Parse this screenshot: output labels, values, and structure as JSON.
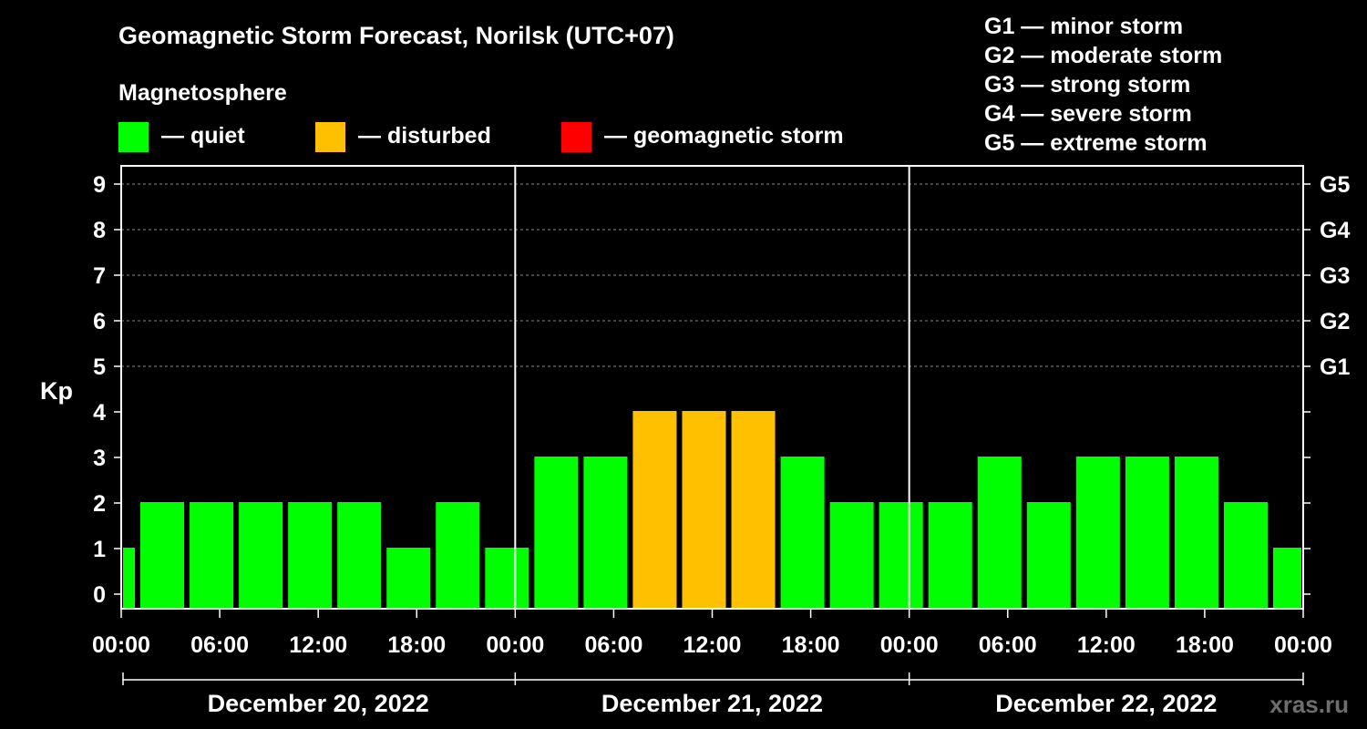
{
  "chart_data": {
    "type": "bar",
    "title": "Geomagnetic Storm Forecast, Norilsk (UTC+07)",
    "legend_title": "Magnetosphere",
    "legend": [
      {
        "label": "— quiet",
        "color": "#00ff00"
      },
      {
        "label": "— disturbed",
        "color": "#ffc000"
      },
      {
        "label": "— geomagnetic storm",
        "color": "#ff0000"
      }
    ],
    "storm_scale": [
      "G1 — minor storm",
      "G2 — moderate storm",
      "G3 — strong storm",
      "G4 — severe storm",
      "G5 — extreme storm"
    ],
    "ylabel": "Kp",
    "ylim": [
      0,
      9
    ],
    "y_ticks": [
      0,
      1,
      2,
      3,
      4,
      5,
      6,
      7,
      8,
      9
    ],
    "right_axis_labels": [
      {
        "kp": 5,
        "label": "G1"
      },
      {
        "kp": 6,
        "label": "G2"
      },
      {
        "kp": 7,
        "label": "G3"
      },
      {
        "kp": 8,
        "label": "G4"
      },
      {
        "kp": 9,
        "label": "G5"
      }
    ],
    "x_ticks": [
      "00:00",
      "06:00",
      "12:00",
      "18:00",
      "00:00",
      "06:00",
      "12:00",
      "18:00",
      "00:00",
      "06:00",
      "12:00",
      "18:00",
      "00:00"
    ],
    "days": [
      "December 20, 2022",
      "December 21, 2022",
      "December 22, 2022"
    ],
    "bars": [
      {
        "start_hour": 0,
        "end_hour": 1,
        "kp": 1,
        "status": "quiet"
      },
      {
        "start_hour": 1,
        "end_hour": 4,
        "kp": 2,
        "status": "quiet"
      },
      {
        "start_hour": 4,
        "end_hour": 7,
        "kp": 2,
        "status": "quiet"
      },
      {
        "start_hour": 7,
        "end_hour": 10,
        "kp": 2,
        "status": "quiet"
      },
      {
        "start_hour": 10,
        "end_hour": 13,
        "kp": 2,
        "status": "quiet"
      },
      {
        "start_hour": 13,
        "end_hour": 16,
        "kp": 2,
        "status": "quiet"
      },
      {
        "start_hour": 16,
        "end_hour": 19,
        "kp": 1,
        "status": "quiet"
      },
      {
        "start_hour": 19,
        "end_hour": 22,
        "kp": 2,
        "status": "quiet"
      },
      {
        "start_hour": 22,
        "end_hour": 25,
        "kp": 1,
        "status": "quiet"
      },
      {
        "start_hour": 25,
        "end_hour": 28,
        "kp": 3,
        "status": "quiet"
      },
      {
        "start_hour": 28,
        "end_hour": 31,
        "kp": 3,
        "status": "quiet"
      },
      {
        "start_hour": 31,
        "end_hour": 34,
        "kp": 4,
        "status": "disturbed"
      },
      {
        "start_hour": 34,
        "end_hour": 37,
        "kp": 4,
        "status": "disturbed"
      },
      {
        "start_hour": 37,
        "end_hour": 40,
        "kp": 4,
        "status": "disturbed"
      },
      {
        "start_hour": 40,
        "end_hour": 43,
        "kp": 3,
        "status": "quiet"
      },
      {
        "start_hour": 43,
        "end_hour": 46,
        "kp": 2,
        "status": "quiet"
      },
      {
        "start_hour": 46,
        "end_hour": 49,
        "kp": 2,
        "status": "quiet"
      },
      {
        "start_hour": 49,
        "end_hour": 52,
        "kp": 2,
        "status": "quiet"
      },
      {
        "start_hour": 52,
        "end_hour": 55,
        "kp": 3,
        "status": "quiet"
      },
      {
        "start_hour": 55,
        "end_hour": 58,
        "kp": 2,
        "status": "quiet"
      },
      {
        "start_hour": 58,
        "end_hour": 61,
        "kp": 3,
        "status": "quiet"
      },
      {
        "start_hour": 61,
        "end_hour": 64,
        "kp": 3,
        "status": "quiet"
      },
      {
        "start_hour": 64,
        "end_hour": 67,
        "kp": 3,
        "status": "quiet"
      },
      {
        "start_hour": 67,
        "end_hour": 70,
        "kp": 2,
        "status": "quiet"
      },
      {
        "start_hour": 70,
        "end_hour": 72,
        "kp": 1,
        "status": "quiet"
      }
    ],
    "status_colors": {
      "quiet": "#00ff00",
      "disturbed": "#ffc000",
      "storm": "#ff0000"
    },
    "grid": true,
    "watermark": "xras.ru"
  }
}
